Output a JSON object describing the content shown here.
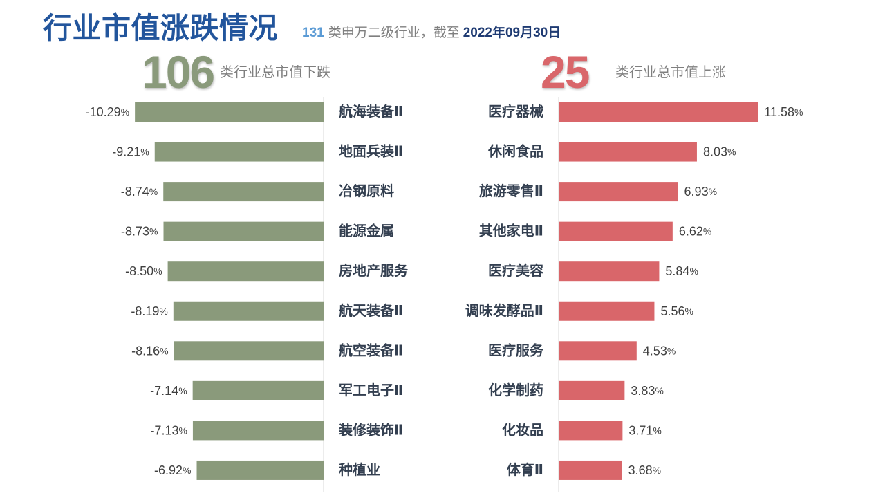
{
  "title": "行业市值涨跌情况",
  "subtitle": {
    "count": "131",
    "text": "类申万二级行业，截至",
    "date": "2022年09月30日"
  },
  "decline_summary": {
    "count": "106",
    "label": "类行业总市值下跌"
  },
  "rise_summary": {
    "count": "25",
    "label": "类行业总市值上涨"
  },
  "colors": {
    "title": "#22559C",
    "subtitle_count": "#5B9BD5",
    "subtitle_text": "#7F7F7F",
    "subtitle_date": "#1F3B73",
    "decline": "#8A9A7B",
    "rise": "#D9666A",
    "axis": "#D9D9D9",
    "muted_text": "#7F7F7F",
    "value_text": "#404040",
    "category_text": "#333F50"
  },
  "chart_data": [
    {
      "type": "bar",
      "orientation": "horizontal",
      "category_axis_side": "right",
      "categories": [
        "航海装备Ⅱ",
        "地面兵装Ⅱ",
        "冶钢原料",
        "能源金属",
        "房地产服务",
        "航天装备Ⅱ",
        "航空装备Ⅱ",
        "军工电子Ⅱ",
        "装修装饰Ⅱ",
        "种植业"
      ],
      "values": [
        -10.29,
        -9.21,
        -8.74,
        -8.73,
        -8.5,
        -8.19,
        -8.16,
        -7.14,
        -7.13,
        -6.92
      ],
      "value_suffix": "%",
      "xlim": [
        -13.5,
        0
      ],
      "grid": false
    },
    {
      "type": "bar",
      "orientation": "horizontal",
      "category_axis_side": "left",
      "categories": [
        "医疗器械",
        "休闲食品",
        "旅游零售Ⅱ",
        "其他家电Ⅱ",
        "医疗美容",
        "调味发酵品Ⅱ",
        "医疗服务",
        "化学制药",
        "化妆品",
        "体育Ⅱ"
      ],
      "values": [
        11.58,
        8.03,
        6.93,
        6.62,
        5.84,
        5.56,
        4.53,
        3.83,
        3.71,
        3.68
      ],
      "value_suffix": "%",
      "xlim": [
        0,
        15
      ],
      "grid": false
    }
  ]
}
